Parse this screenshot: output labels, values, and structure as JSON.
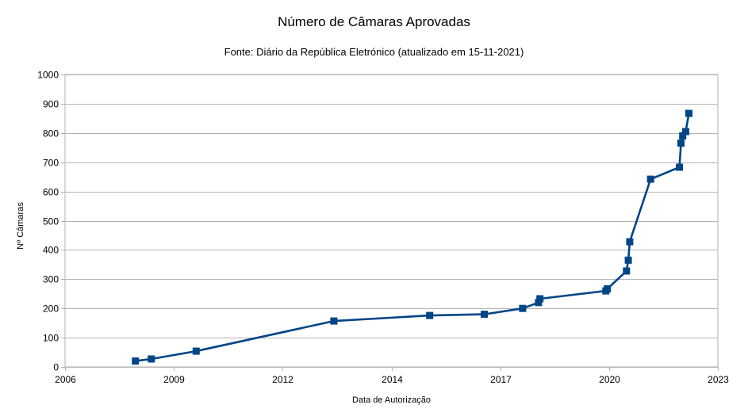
{
  "chart_data": {
    "type": "line",
    "title": "Número de Câmaras Aprovadas",
    "subtitle": "Fonte: Diário da República Eletrónico (atualizado em 15-11-2021)",
    "xlabel": "Data de Autorização",
    "ylabel": "Nº Câmaras",
    "xlim": [
      "2006-01-01",
      "2023-01-01"
    ],
    "ylim": [
      0,
      1000
    ],
    "x_ticks": [
      "2006",
      "2009",
      "2012",
      "2014",
      "2017",
      "2020",
      "2023"
    ],
    "y_ticks": [
      "0",
      "100",
      "200",
      "300",
      "400",
      "500",
      "600",
      "700",
      "800",
      "900",
      "1000"
    ],
    "grid": true,
    "legend": "none",
    "colors": {
      "series": "#004586",
      "grid": "#b3b3b3",
      "axis": "#b3b3b3"
    },
    "series": [
      {
        "marker": "square",
        "x": [
          "2007-11-01",
          "2008-04-01",
          "2009-06-01",
          "2013-01-01",
          "2015-07-01",
          "2016-12-01",
          "2017-12-01",
          "2018-05-01",
          "2018-05-15",
          "2020-02-01",
          "2020-02-15",
          "2020-08-15",
          "2020-09-01",
          "2020-09-15",
          "2021-04-01",
          "2022-01-01",
          "2022-01-15",
          "2022-02-01",
          "2022-03-01",
          "2022-04-01"
        ],
        "y": [
          20,
          27,
          54,
          157,
          176,
          180,
          200,
          220,
          233,
          260,
          267,
          328,
          365,
          428,
          642,
          683,
          765,
          790,
          805,
          867
        ]
      }
    ]
  }
}
